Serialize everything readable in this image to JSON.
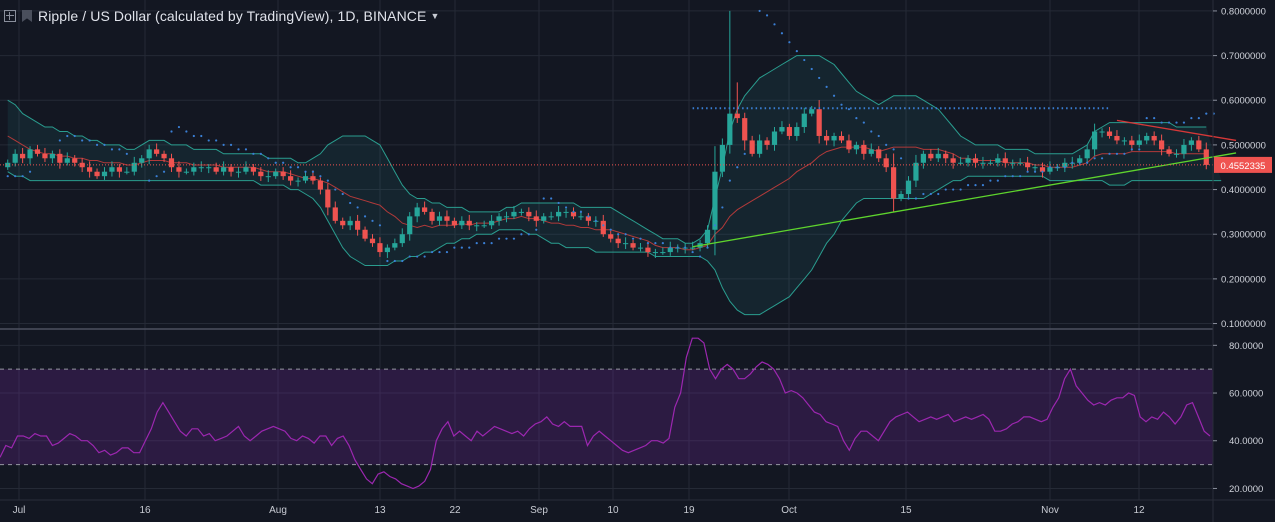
{
  "header": {
    "title": "Ripple / US Dollar (calculated by TradingView), 1D, BINANCE",
    "symbol_icon": "square-plus-icon",
    "logo_icon": "bookmark-logo-icon",
    "caret_icon": "caret-down-icon"
  },
  "colors": {
    "background": "#131722",
    "up": "#26a69a",
    "down": "#ef5350",
    "bollinger": "#2a9d8f",
    "bollinger_fill": "rgba(35,110,120,0.16)",
    "basis": "#b23a3a",
    "psar": "#3a7fd5",
    "uptrend": "#5ed42d",
    "downtrend": "#d63838",
    "resistance": "#3a7fd5",
    "last_price": "#ef5350",
    "rsi": "#9c27b0",
    "rsi_band": "rgba(110,40,150,0.28)"
  },
  "chart_data": [
    {
      "type": "candlestick",
      "title": "Ripple / US Dollar (calculated by TradingView), 1D, BINANCE",
      "x_tick_labels": [
        "Jul",
        "16",
        "Aug",
        "13",
        "22",
        "Sep",
        "10",
        "19",
        "Oct",
        "15",
        "Nov",
        "12"
      ],
      "y_ticks": [
        "0.8000000",
        "0.7000000",
        "0.6000000",
        "0.5000000",
        "0.4000000",
        "0.3000000",
        "0.2000000",
        "0.1000000"
      ],
      "y_tick_values": [
        0.8,
        0.7,
        0.6,
        0.5,
        0.4,
        0.3,
        0.2,
        0.1
      ],
      "ylim": [
        0.09,
        0.82
      ],
      "last_price_label": "0.4552335",
      "last_price_value": 0.4552335,
      "grid": true,
      "closes": [
        0.46,
        0.48,
        0.47,
        0.49,
        0.48,
        0.47,
        0.48,
        0.46,
        0.47,
        0.46,
        0.45,
        0.44,
        0.43,
        0.44,
        0.45,
        0.44,
        0.44,
        0.46,
        0.47,
        0.49,
        0.48,
        0.47,
        0.45,
        0.44,
        0.44,
        0.45,
        0.45,
        0.45,
        0.44,
        0.45,
        0.44,
        0.44,
        0.45,
        0.44,
        0.43,
        0.43,
        0.44,
        0.43,
        0.42,
        0.42,
        0.43,
        0.42,
        0.4,
        0.36,
        0.33,
        0.32,
        0.33,
        0.31,
        0.29,
        0.28,
        0.26,
        0.27,
        0.28,
        0.3,
        0.34,
        0.36,
        0.35,
        0.33,
        0.34,
        0.33,
        0.32,
        0.33,
        0.32,
        0.32,
        0.32,
        0.33,
        0.34,
        0.34,
        0.35,
        0.35,
        0.34,
        0.33,
        0.34,
        0.34,
        0.35,
        0.35,
        0.34,
        0.34,
        0.33,
        0.33,
        0.3,
        0.29,
        0.28,
        0.28,
        0.27,
        0.27,
        0.26,
        0.26,
        0.26,
        0.27,
        0.27,
        0.27,
        0.27,
        0.28,
        0.31,
        0.44,
        0.5,
        0.57,
        0.56,
        0.51,
        0.48,
        0.51,
        0.5,
        0.53,
        0.54,
        0.52,
        0.54,
        0.57,
        0.58,
        0.52,
        0.51,
        0.52,
        0.51,
        0.49,
        0.5,
        0.48,
        0.49,
        0.47,
        0.45,
        0.38,
        0.39,
        0.42,
        0.46,
        0.48,
        0.47,
        0.48,
        0.47,
        0.46,
        0.46,
        0.47,
        0.46,
        0.46,
        0.46,
        0.47,
        0.46,
        0.46,
        0.46,
        0.45,
        0.45,
        0.44,
        0.45,
        0.45,
        0.46,
        0.46,
        0.47,
        0.49,
        0.53,
        0.53,
        0.52,
        0.51,
        0.51,
        0.5,
        0.51,
        0.52,
        0.51,
        0.49,
        0.48,
        0.48,
        0.5,
        0.51,
        0.49,
        0.4552335
      ],
      "bollinger_upper": [
        0.6,
        0.59,
        0.57,
        0.56,
        0.55,
        0.54,
        0.54,
        0.53,
        0.53,
        0.52,
        0.52,
        0.51,
        0.51,
        0.5,
        0.5,
        0.5,
        0.49,
        0.49,
        0.5,
        0.51,
        0.51,
        0.51,
        0.5,
        0.5,
        0.5,
        0.49,
        0.49,
        0.49,
        0.49,
        0.48,
        0.48,
        0.48,
        0.48,
        0.48,
        0.48,
        0.47,
        0.47,
        0.47,
        0.47,
        0.46,
        0.46,
        0.47,
        0.48,
        0.5,
        0.51,
        0.52,
        0.52,
        0.52,
        0.52,
        0.51,
        0.5,
        0.47,
        0.44,
        0.41,
        0.39,
        0.38,
        0.38,
        0.37,
        0.37,
        0.36,
        0.36,
        0.36,
        0.35,
        0.35,
        0.35,
        0.35,
        0.35,
        0.36,
        0.36,
        0.37,
        0.37,
        0.37,
        0.37,
        0.37,
        0.37,
        0.37,
        0.37,
        0.36,
        0.36,
        0.36,
        0.36,
        0.36,
        0.35,
        0.34,
        0.33,
        0.32,
        0.31,
        0.3,
        0.29,
        0.29,
        0.29,
        0.28,
        0.28,
        0.29,
        0.31,
        0.38,
        0.45,
        0.53,
        0.58,
        0.61,
        0.63,
        0.65,
        0.66,
        0.67,
        0.68,
        0.69,
        0.7,
        0.7,
        0.7,
        0.7,
        0.69,
        0.68,
        0.66,
        0.64,
        0.62,
        0.61,
        0.6,
        0.59,
        0.6,
        0.61,
        0.61,
        0.61,
        0.61,
        0.6,
        0.59,
        0.58,
        0.56,
        0.54,
        0.52,
        0.51,
        0.5,
        0.5,
        0.5,
        0.5,
        0.49,
        0.49,
        0.49,
        0.49,
        0.48,
        0.48,
        0.48,
        0.48,
        0.48,
        0.48,
        0.49,
        0.5,
        0.53,
        0.54,
        0.55,
        0.55,
        0.55,
        0.55,
        0.55,
        0.55,
        0.55,
        0.55,
        0.55,
        0.54,
        0.54,
        0.54,
        0.54,
        0.54
      ],
      "bollinger_lower": [
        0.44,
        0.43,
        0.43,
        0.42,
        0.42,
        0.42,
        0.42,
        0.42,
        0.42,
        0.42,
        0.42,
        0.42,
        0.42,
        0.42,
        0.42,
        0.42,
        0.42,
        0.42,
        0.42,
        0.42,
        0.42,
        0.42,
        0.42,
        0.42,
        0.42,
        0.42,
        0.42,
        0.42,
        0.42,
        0.42,
        0.42,
        0.42,
        0.42,
        0.42,
        0.41,
        0.41,
        0.41,
        0.41,
        0.4,
        0.4,
        0.39,
        0.38,
        0.36,
        0.33,
        0.3,
        0.27,
        0.25,
        0.24,
        0.23,
        0.23,
        0.23,
        0.23,
        0.24,
        0.24,
        0.25,
        0.25,
        0.26,
        0.26,
        0.27,
        0.28,
        0.28,
        0.29,
        0.29,
        0.3,
        0.3,
        0.3,
        0.31,
        0.31,
        0.31,
        0.31,
        0.3,
        0.3,
        0.29,
        0.28,
        0.28,
        0.27,
        0.27,
        0.27,
        0.27,
        0.26,
        0.26,
        0.26,
        0.26,
        0.26,
        0.26,
        0.26,
        0.26,
        0.25,
        0.25,
        0.25,
        0.25,
        0.25,
        0.25,
        0.25,
        0.24,
        0.22,
        0.18,
        0.15,
        0.13,
        0.12,
        0.12,
        0.12,
        0.13,
        0.14,
        0.15,
        0.16,
        0.18,
        0.2,
        0.22,
        0.25,
        0.28,
        0.3,
        0.33,
        0.35,
        0.37,
        0.38,
        0.38,
        0.38,
        0.38,
        0.38,
        0.38,
        0.38,
        0.38,
        0.38,
        0.39,
        0.4,
        0.41,
        0.42,
        0.42,
        0.43,
        0.43,
        0.43,
        0.43,
        0.43,
        0.43,
        0.43,
        0.43,
        0.43,
        0.43,
        0.43,
        0.42,
        0.42,
        0.42,
        0.42,
        0.42,
        0.42,
        0.42,
        0.42,
        0.41,
        0.41,
        0.41,
        0.42,
        0.42,
        0.42,
        0.42,
        0.42,
        0.42,
        0.42,
        0.42,
        0.42,
        0.42,
        0.42,
        0.42,
        0.42
      ],
      "psar": [
        0.43,
        0.43,
        0.43,
        0.44,
        null,
        null,
        null,
        0.51,
        0.52,
        0.52,
        0.51,
        0.51,
        0.5,
        0.5,
        0.49,
        0.49,
        0.48,
        null,
        null,
        0.42,
        0.43,
        0.44,
        0.53,
        0.54,
        0.53,
        0.52,
        0.52,
        0.51,
        0.51,
        0.5,
        0.5,
        0.49,
        0.49,
        0.48,
        0.48,
        0.47,
        0.46,
        0.46,
        0.45,
        0.45,
        0.44,
        0.44,
        0.43,
        0.42,
        0.4,
        0.39,
        0.37,
        0.36,
        0.34,
        0.33,
        0.32,
        0.24,
        0.24,
        0.24,
        0.25,
        0.25,
        0.25,
        0.26,
        0.26,
        0.26,
        0.27,
        0.27,
        0.27,
        0.28,
        0.28,
        0.28,
        0.29,
        0.29,
        0.29,
        0.3,
        0.3,
        0.31,
        0.38,
        0.38,
        0.37,
        0.36,
        0.35,
        0.35,
        0.34,
        0.33,
        0.32,
        0.31,
        0.3,
        0.3,
        0.29,
        0.29,
        0.28,
        0.28,
        0.28,
        0.27,
        0.27,
        0.27,
        0.26,
        0.25,
        0.27,
        0.32,
        0.36,
        0.42,
        0.45,
        0.48,
        null,
        0.8,
        0.79,
        0.77,
        0.75,
        0.73,
        0.71,
        0.69,
        0.67,
        0.65,
        0.63,
        0.61,
        0.59,
        0.58,
        0.56,
        0.55,
        0.53,
        0.52,
        0.5,
        0.49,
        0.47,
        0.38,
        0.38,
        0.39,
        0.39,
        0.39,
        0.4,
        0.4,
        0.4,
        0.41,
        0.41,
        0.41,
        0.42,
        0.42,
        0.43,
        0.43,
        0.43,
        0.44,
        0.44,
        0.44,
        0.45,
        0.45,
        0.45,
        0.46,
        0.46,
        0.46,
        0.47,
        0.47,
        0.48,
        0.48,
        0.48,
        0.49,
        0.49,
        0.56,
        0.56,
        0.55,
        0.55,
        0.55,
        0.55,
        0.56,
        0.56,
        0.57,
        0.57
      ]
    },
    {
      "type": "line",
      "series": [
        {
          "values": [
            33,
            38,
            37,
            42,
            42,
            41,
            43,
            42,
            42,
            38,
            39,
            41,
            43,
            42,
            40,
            40,
            38,
            35,
            36,
            34,
            35,
            37,
            37,
            35,
            35,
            40,
            45,
            52,
            56,
            52,
            48,
            44,
            42,
            45,
            45,
            42,
            43,
            40,
            41,
            42,
            44,
            46,
            42,
            40,
            42,
            44,
            45,
            46,
            45,
            44,
            41,
            40,
            42,
            41,
            39,
            42,
            42,
            38,
            41,
            42,
            38,
            32,
            28,
            24,
            22,
            26,
            27,
            25,
            24,
            22,
            21,
            20,
            21,
            23,
            28,
            40,
            45,
            48,
            42,
            44,
            42,
            40,
            44,
            42,
            44,
            46,
            45,
            44,
            43,
            44,
            42,
            45,
            47,
            48,
            50,
            47,
            46,
            48,
            46,
            46,
            46,
            38,
            42,
            44,
            42,
            40,
            38,
            36,
            35,
            36,
            37,
            38,
            40,
            40,
            39,
            41,
            54,
            60,
            75,
            83,
            83,
            81,
            70,
            66,
            70,
            72,
            70,
            66,
            66,
            68,
            71,
            73,
            72,
            70,
            66,
            60,
            61,
            60,
            58,
            55,
            52,
            51,
            48,
            47,
            46,
            40,
            36,
            41,
            44,
            44,
            42,
            40,
            44,
            48,
            50,
            51,
            52,
            50,
            48,
            49,
            50,
            49,
            50,
            51,
            48,
            49,
            50,
            49,
            50,
            51,
            49,
            44,
            44,
            45,
            47,
            48,
            50,
            50,
            49,
            48,
            49,
            54,
            58,
            66,
            70,
            63,
            60,
            57,
            55,
            56,
            55,
            57,
            58,
            58,
            60,
            59,
            50,
            48,
            50,
            49,
            52,
            50,
            47,
            50,
            55,
            56,
            50,
            44,
            42
          ]
        }
      ],
      "y_ticks": [
        "80.0000",
        "60.0000",
        "40.0000",
        "20.0000"
      ],
      "y_tick_values": [
        80,
        60,
        40,
        20
      ],
      "ylim": [
        16,
        86
      ],
      "levels": [
        70,
        30
      ],
      "x_tick_labels": [
        "Jul",
        "16",
        "Aug",
        "13",
        "22",
        "Sep",
        "10",
        "19",
        "Oct",
        "15",
        "Nov",
        "12"
      ]
    }
  ]
}
